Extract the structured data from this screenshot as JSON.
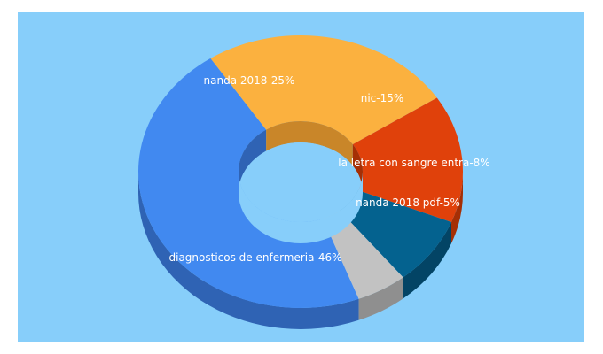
{
  "chart_data": {
    "type": "pie",
    "variant": "3d-donut",
    "background": "#87cefa",
    "slices": [
      {
        "label": "diagnosticos de enfermeria-46%",
        "value": 46,
        "color": "#4189f0",
        "side_color": "#2f63b4"
      },
      {
        "label": "nanda 2018-25%",
        "value": 25,
        "color": "#fbb13f",
        "side_color": "#c98629"
      },
      {
        "label": "nic-15%",
        "value": 15,
        "color": "#e0410b",
        "side_color": "#a52f05"
      },
      {
        "label": "la letra con sangre entra-8%",
        "value": 8,
        "color": "#04628f",
        "side_color": "#034465"
      },
      {
        "label": "nanda 2018 pdf-5%",
        "value": 5,
        "color": "#c2c2c2",
        "side_color": "#8f8f8f"
      }
    ]
  }
}
